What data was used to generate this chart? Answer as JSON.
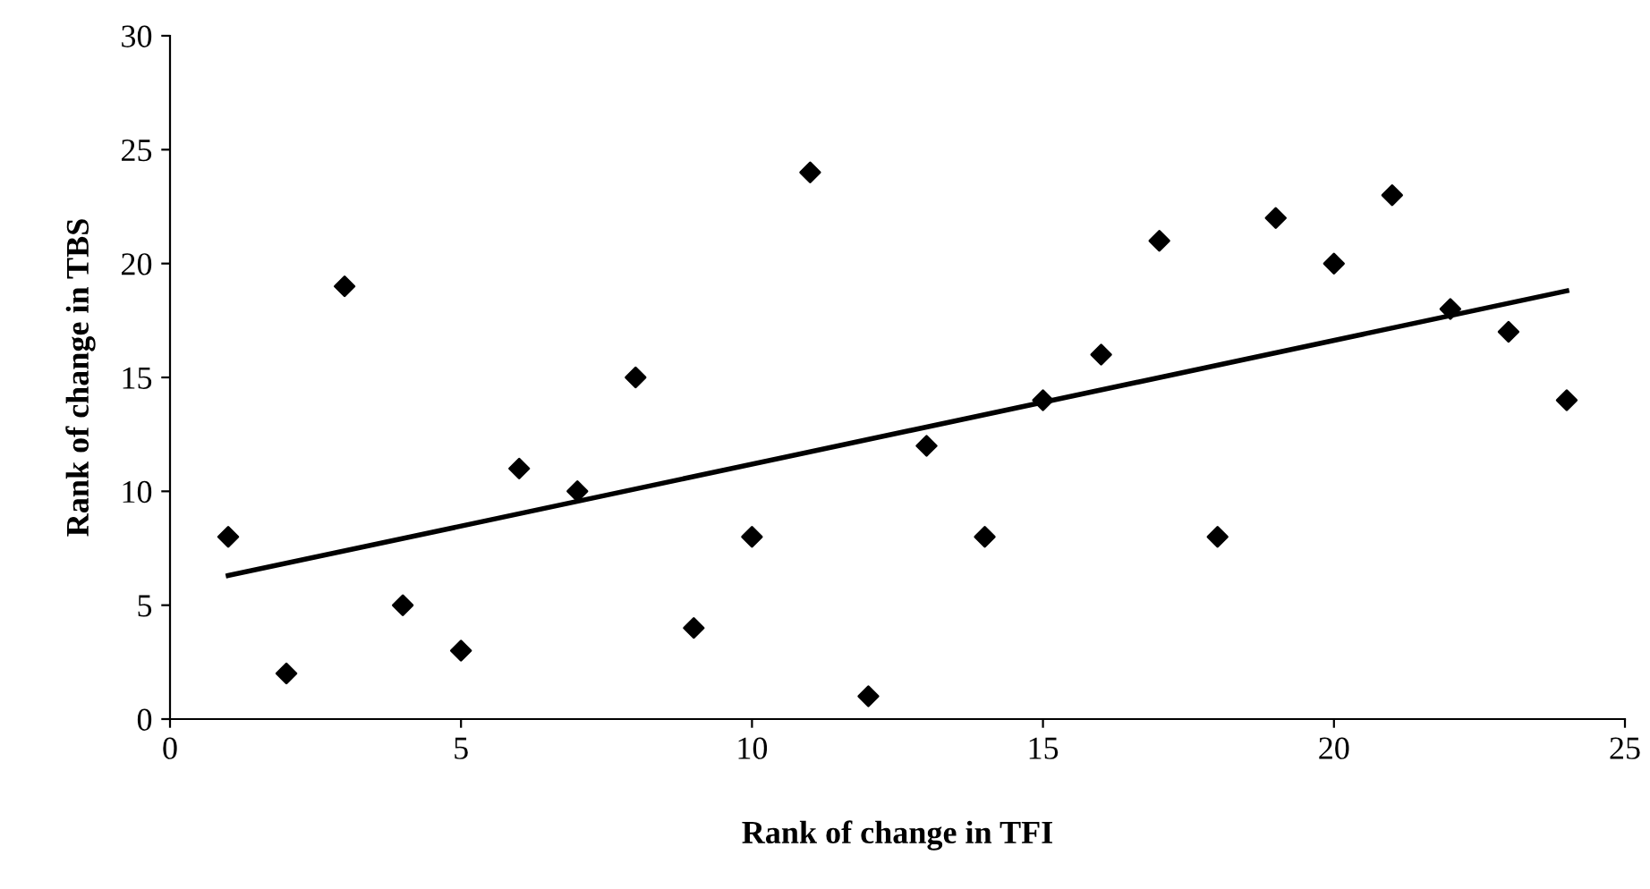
{
  "chart_data": {
    "type": "scatter",
    "xlabel": "Rank of change in TFI",
    "ylabel": "Rank of change in TBS",
    "xlim": [
      0,
      25
    ],
    "ylim": [
      0,
      30
    ],
    "xticks": [
      0,
      5,
      10,
      15,
      20,
      25
    ],
    "yticks": [
      0,
      5,
      10,
      15,
      20,
      25,
      30
    ],
    "grid": false,
    "legend": false,
    "series": [
      {
        "marker": "diamond",
        "color": "#000000",
        "x": [
          1,
          2,
          3,
          4,
          5,
          6,
          7,
          8,
          9,
          10,
          11,
          12,
          13,
          14,
          15,
          16,
          17,
          18,
          19,
          20,
          21,
          22,
          23,
          24
        ],
        "values": [
          8,
          2,
          19,
          5,
          3,
          11,
          10,
          15,
          4,
          8,
          24,
          1,
          12,
          8,
          14,
          16,
          21,
          8,
          22,
          20,
          23,
          18,
          17,
          14
        ]
      },
      {
        "type": "line",
        "color": "#000000",
        "line_style": "solid",
        "x": [
          1,
          24
        ],
        "values": [
          6.3,
          18.8
        ]
      }
    ]
  }
}
